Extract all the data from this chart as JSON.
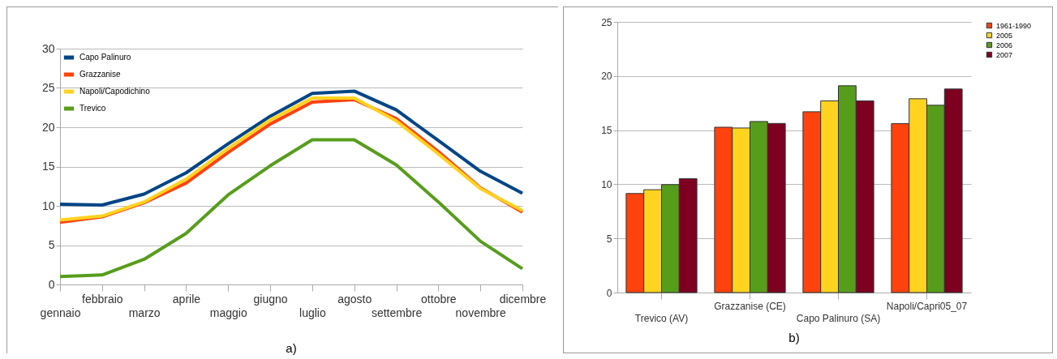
{
  "chart_data": [
    {
      "type": "line",
      "categories": [
        "gennaio",
        "febbraio",
        "marzo",
        "aprile",
        "maggio",
        "giugno",
        "luglio",
        "agosto",
        "settembre",
        "ottobre",
        "novembre",
        "dicembre"
      ],
      "series": [
        {
          "name": "Capo Palinuro",
          "color": "#004586",
          "values": [
            10.2,
            10.1,
            11.5,
            14.2,
            17.9,
            21.4,
            24.3,
            24.6,
            22.2,
            18.3,
            14.4,
            11.6
          ]
        },
        {
          "name": "Grazzanise",
          "color": "#ff420e",
          "values": [
            7.9,
            8.6,
            10.4,
            12.9,
            16.8,
            20.4,
            23.2,
            23.5,
            21.1,
            16.9,
            12.3,
            9.2
          ]
        },
        {
          "name": "Napoli/Capodichino",
          "color": "#ffd320",
          "values": [
            8.2,
            8.7,
            10.5,
            13.4,
            17.3,
            20.9,
            23.7,
            23.7,
            20.8,
            16.6,
            12.2,
            9.4
          ]
        },
        {
          "name": "Trevico",
          "color": "#579d1c",
          "values": [
            1.0,
            1.2,
            3.2,
            6.5,
            11.4,
            15.1,
            18.4,
            18.4,
            15.2,
            10.5,
            5.5,
            2.0
          ]
        }
      ],
      "ylim": [
        0,
        30
      ],
      "yticks": [
        0,
        5,
        10,
        15,
        20,
        25,
        30
      ],
      "grid": "y",
      "legend": "top left",
      "line_style": "solid",
      "annotations": [
        "a)"
      ]
    },
    {
      "type": "bar",
      "categories": [
        "Trevico (AV)",
        "Grazzanise (CE)",
        "Capo Palinuro (SA)",
        "Napoli/Capri05_07"
      ],
      "series": [
        {
          "name": "1961-1990",
          "color": "#ff420e",
          "values": [
            9.15,
            15.27,
            16.7,
            15.6
          ]
        },
        {
          "name": "2005",
          "color": "#ffd320",
          "values": [
            9.5,
            15.2,
            17.7,
            17.9
          ]
        },
        {
          "name": "2006",
          "color": "#579d1c",
          "values": [
            9.97,
            15.8,
            19.1,
            17.3
          ]
        },
        {
          "name": "2007",
          "color": "#7e0021",
          "values": [
            10.52,
            15.62,
            17.7,
            18.8
          ]
        }
      ],
      "ylim": [
        0,
        25
      ],
      "yticks": [
        0,
        5,
        10,
        15,
        20,
        25
      ],
      "grid": "y",
      "legend": "right",
      "annotations": [
        "b)"
      ]
    }
  ]
}
